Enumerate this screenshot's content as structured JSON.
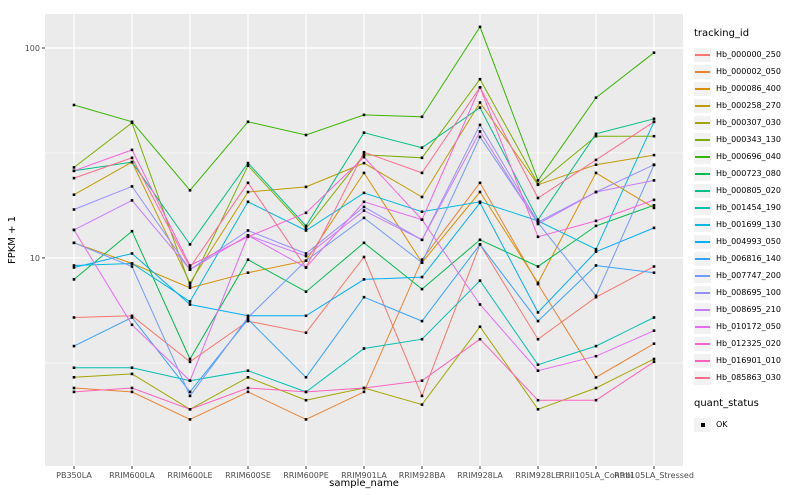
{
  "style": {
    "panel_bg": "#EBEBEB",
    "grid_color": "#FFFFFF",
    "tick_color": "#333333",
    "tick_label_color": "#4D4D4D",
    "axis_title_color": "#000000",
    "point_color": "#000000",
    "legend_key_bg": "#F2F2F2"
  },
  "chart_data": {
    "type": "line",
    "title": "",
    "xlabel": "sample_name",
    "ylabel": "FPKM + 1",
    "y_scale": "log10",
    "ylim": [
      1.02,
      145.2
    ],
    "y_ticks": [
      10,
      100
    ],
    "y_tick_labels": [
      "10",
      "100"
    ],
    "y_minor": [
      3.1623,
      31.623
    ],
    "grid": true,
    "legend": {
      "title": "tracking_id",
      "position": "right"
    },
    "quant_status": {
      "title": "quant_status",
      "items": [
        "OK"
      ]
    },
    "point_shape": "square",
    "categories": [
      "PB350LA",
      "RRIM600LA",
      "RRIM600LE",
      "RRIM600SE",
      "RRIM600PE",
      "RRIM901LA",
      "RRIM928BA",
      "RRIM928LA",
      "RRIM928LE",
      "RRII105LA_Control",
      "RRII105LA_Stressed"
    ],
    "series": [
      {
        "name": "Hb_000000_250",
        "color": "#F8766D",
        "values": [
          5.2,
          5.3,
          3.2,
          5.0,
          4.4,
          10.1,
          2.2,
          11.6,
          4.1,
          6.5,
          9.1
        ]
      },
      {
        "name": "Hb_000002_050",
        "color": "#EA8331",
        "values": [
          2.4,
          2.3,
          1.7,
          2.3,
          1.7,
          2.3,
          9.8,
          22.8,
          7.5,
          2.7,
          3.9
        ]
      },
      {
        "name": "Hb_000086_400",
        "color": "#D89000",
        "values": [
          11.8,
          9.4,
          7.2,
          8.5,
          9.7,
          25.4,
          9.5,
          20.6,
          7.6,
          25.4,
          17.3
        ]
      },
      {
        "name": "Hb_000258_270",
        "color": "#C09B00",
        "values": [
          20.0,
          28.6,
          7.6,
          20.6,
          21.8,
          28.3,
          19.5,
          55.0,
          22.3,
          27.8,
          30.9
        ]
      },
      {
        "name": "Hb_000307_030",
        "color": "#A3A500",
        "values": [
          2.7,
          2.8,
          1.9,
          2.7,
          2.1,
          2.4,
          2.0,
          4.7,
          1.9,
          2.4,
          3.3
        ]
      },
      {
        "name": "Hb_000343_130",
        "color": "#7CAE00",
        "values": [
          27.0,
          44.0,
          7.4,
          27.5,
          13.8,
          31.0,
          30.0,
          71.0,
          22.5,
          38.0,
          38.0
        ]
      },
      {
        "name": "Hb_000696_040",
        "color": "#39B600",
        "values": [
          53.5,
          44.5,
          21.0,
          44.5,
          38.5,
          48.0,
          47.0,
          126.0,
          23.4,
          58.0,
          95.0
        ]
      },
      {
        "name": "Hb_000723_080",
        "color": "#00BB4E",
        "values": [
          7.9,
          13.4,
          3.3,
          9.8,
          6.9,
          11.8,
          7.1,
          12.2,
          9.1,
          14.2,
          17.8
        ]
      },
      {
        "name": "Hb_000805_020",
        "color": "#00C087",
        "values": [
          26.0,
          28.6,
          11.6,
          28.3,
          14.2,
          39.5,
          33.5,
          52.0,
          15.2,
          39.0,
          46.0
        ]
      },
      {
        "name": "Hb_001454_190",
        "color": "#00C0B2",
        "values": [
          3.0,
          3.0,
          2.6,
          2.9,
          2.3,
          3.7,
          4.1,
          7.8,
          3.1,
          3.8,
          5.2
        ]
      },
      {
        "name": "Hb_001699_130",
        "color": "#00BAE0",
        "values": [
          9.2,
          9.4,
          6.2,
          18.5,
          13.5,
          20.4,
          16.6,
          18.5,
          15.0,
          11.0,
          44.5
        ]
      },
      {
        "name": "Hb_004993_050",
        "color": "#00B0F6",
        "values": [
          9.0,
          10.5,
          6.0,
          5.3,
          5.3,
          7.9,
          8.1,
          18.3,
          5.5,
          10.7,
          13.9
        ]
      },
      {
        "name": "Hb_006816_140",
        "color": "#35A2FF",
        "values": [
          3.8,
          5.2,
          2.3,
          5.1,
          2.7,
          6.5,
          5.0,
          11.6,
          5.0,
          9.2,
          8.5
        ]
      },
      {
        "name": "Hb_007747_200",
        "color": "#7099FF",
        "values": [
          11.8,
          9.1,
          2.2,
          5.2,
          9.7,
          15.5,
          9.5,
          37.7,
          14.7,
          6.6,
          27.7
        ]
      },
      {
        "name": "Hb_008695_100",
        "color": "#9590FF",
        "values": [
          17.0,
          21.9,
          8.8,
          13.5,
          10.5,
          17.5,
          12.2,
          43.0,
          14.8,
          20.6,
          27.8
        ]
      },
      {
        "name": "Hb_008695_210",
        "color": "#C77CFF",
        "values": [
          13.6,
          18.8,
          8.8,
          12.8,
          10.2,
          16.8,
          12.2,
          40.0,
          14.5,
          20.6,
          23.4
        ]
      },
      {
        "name": "Hb_010172_050",
        "color": "#E76BF3",
        "values": [
          13.6,
          4.8,
          2.6,
          12.8,
          9.0,
          18.5,
          15.2,
          6.0,
          2.9,
          3.4,
          4.5
        ]
      },
      {
        "name": "Hb_012325_020",
        "color": "#FA62DB",
        "values": [
          26.0,
          32.7,
          9.2,
          12.6,
          16.4,
          30.2,
          15.2,
          65.0,
          12.6,
          15.0,
          18.9
        ]
      },
      {
        "name": "Hb_016901_010",
        "color": "#FF62BC",
        "values": [
          2.3,
          2.4,
          1.9,
          2.4,
          2.3,
          2.4,
          2.6,
          4.1,
          2.1,
          2.1,
          3.2
        ]
      },
      {
        "name": "Hb_085863_030",
        "color": "#FF6C91",
        "values": [
          24.0,
          30.0,
          9.0,
          22.8,
          9.0,
          31.9,
          25.4,
          65.0,
          19.3,
          29.3,
          44.5
        ]
      }
    ]
  }
}
